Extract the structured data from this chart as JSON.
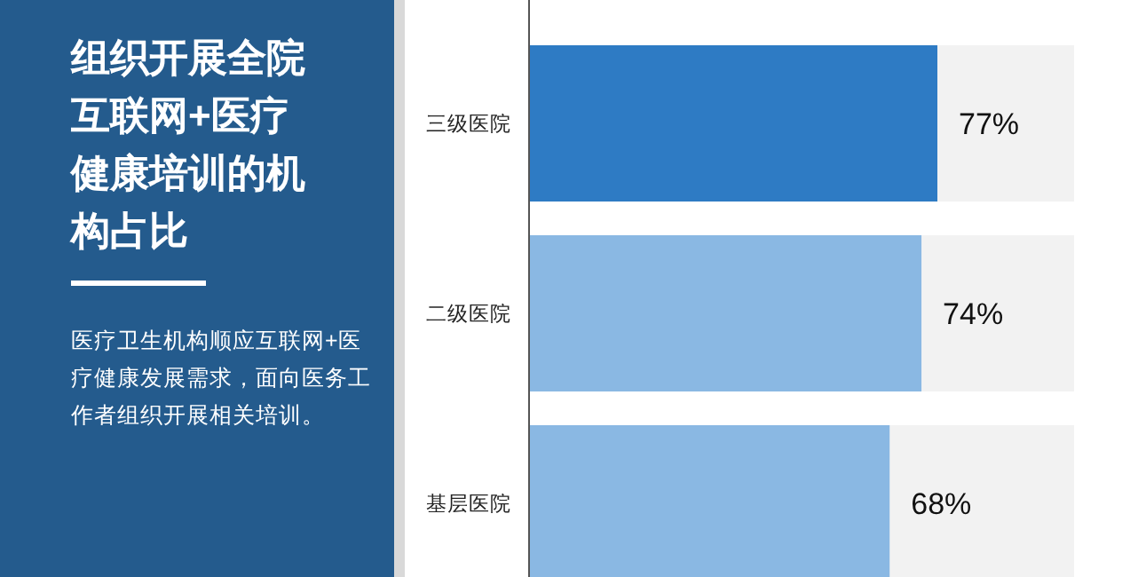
{
  "chart_data": {
    "type": "bar",
    "orientation": "horizontal",
    "title": "组织开展全院互联网+医疗健康培训的机构占比",
    "annotations": [
      "医疗卫生机构顺应互联网+医疗健康发展需求，面向医务工作者组织开展相关培训。"
    ],
    "categories": [
      "三级医院",
      "二级医院",
      "基层医院"
    ],
    "values": [
      77,
      74,
      68
    ],
    "value_labels": [
      "77%",
      "74%",
      "68%"
    ],
    "colors": [
      "#2e7bc4",
      "#8ab8e3",
      "#8ab8e3"
    ],
    "tick_labels": "y"
  }
}
